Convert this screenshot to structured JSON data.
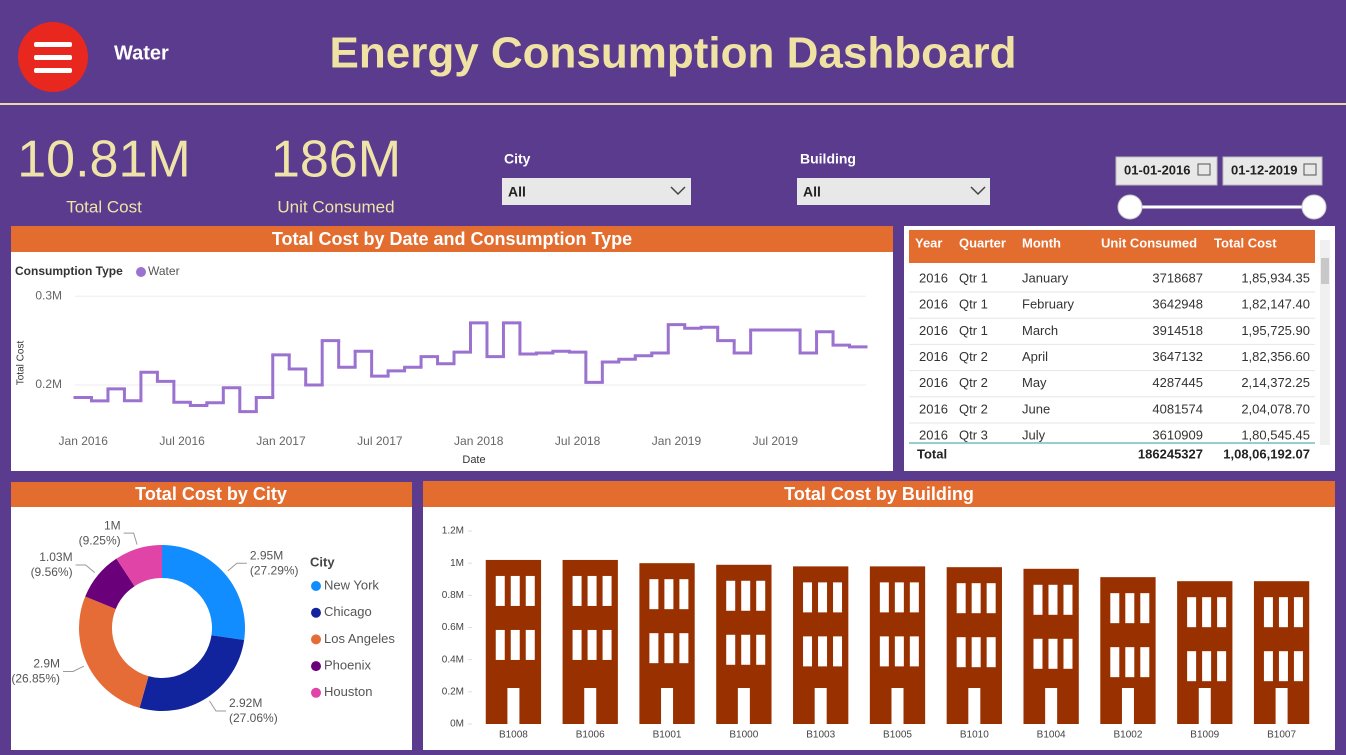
{
  "header": {
    "menu_label": "Water",
    "title": "Energy Consumption Dashboard"
  },
  "kpis": [
    {
      "value": "10.81M",
      "label": "Total Cost"
    },
    {
      "value": "186M",
      "label": "Unit Consumed"
    }
  ],
  "filters": [
    {
      "label": "City",
      "value": "All"
    },
    {
      "label": "Building",
      "value": "All"
    }
  ],
  "date_range": [
    "01-01-2016",
    "01-12-2019"
  ],
  "chart_data": [
    {
      "type": "line",
      "title": "Total Cost by Date and Consumption Type",
      "legend_title": "Consumption Type",
      "x_label": "Date",
      "y_label": "Total Cost",
      "step": true,
      "grid": true,
      "x": [
        "2016-01",
        "2016-02",
        "2016-03",
        "2016-04",
        "2016-05",
        "2016-06",
        "2016-07",
        "2016-08",
        "2016-09",
        "2016-10",
        "2016-11",
        "2016-12",
        "2017-01",
        "2017-02",
        "2017-03",
        "2017-04",
        "2017-05",
        "2017-06",
        "2017-07",
        "2017-08",
        "2017-09",
        "2017-10",
        "2017-11",
        "2017-12",
        "2018-01",
        "2018-02",
        "2018-03",
        "2018-04",
        "2018-05",
        "2018-06",
        "2018-07",
        "2018-08",
        "2018-09",
        "2018-10",
        "2018-11",
        "2018-12",
        "2019-01",
        "2019-02",
        "2019-03",
        "2019-04",
        "2019-05",
        "2019-06",
        "2019-07",
        "2019-08",
        "2019-09",
        "2019-10",
        "2019-11",
        "2019-12"
      ],
      "xticks": [
        {
          "value": "2016-01",
          "label": "Jan 2016"
        },
        {
          "value": "2016-07",
          "label": "Jul 2016"
        },
        {
          "value": "2017-01",
          "label": "Jan 2017"
        },
        {
          "value": "2017-07",
          "label": "Jul 2017"
        },
        {
          "value": "2018-01",
          "label": "Jan 2018"
        },
        {
          "value": "2018-07",
          "label": "Jul 2018"
        },
        {
          "value": "2019-01",
          "label": "Jan 2019"
        },
        {
          "value": "2019-07",
          "label": "Jul 2019"
        }
      ],
      "ylim": [
        155000,
        307000
      ],
      "yticks": [
        {
          "value": 200000,
          "label": "0.2M"
        },
        {
          "value": 300000,
          "label": "0.3M"
        }
      ],
      "series": [
        {
          "name": "Water",
          "color": "#9b72cf",
          "values": [
            185934,
            182147,
            195726,
            182357,
            214372,
            204079,
            180545,
            177000,
            180000,
            197000,
            170000,
            186000,
            234000,
            218000,
            200000,
            250000,
            220000,
            238000,
            210000,
            216000,
            220000,
            232000,
            224000,
            237000,
            270000,
            232000,
            270000,
            235000,
            236000,
            238000,
            237000,
            203000,
            226000,
            229000,
            233000,
            236000,
            268000,
            264000,
            265000,
            250000,
            236000,
            262000,
            262000,
            262000,
            236000,
            260000,
            245000,
            243000
          ]
        }
      ]
    },
    {
      "type": "pie",
      "title": "Total Cost by City",
      "legend_title": "City",
      "categories": [
        "New York",
        "Chicago",
        "Los Angeles",
        "Phoenix",
        "Houston"
      ],
      "values": [
        2950000,
        2920000,
        2900000,
        1030000,
        1000000
      ],
      "value_labels": [
        "2.95M",
        "2.92M",
        "2.9M",
        "1.03M",
        "1M"
      ],
      "percents": [
        27.29,
        27.06,
        26.85,
        9.56,
        9.25
      ],
      "percent_labels": [
        "(27.29%)",
        "(27.06%)",
        "(26.85%)",
        "(9.56%)",
        "(9.25%)"
      ],
      "colors": [
        "#118dff",
        "#12239e",
        "#e66c37",
        "#6b007b",
        "#e044a7"
      ]
    },
    {
      "type": "bar",
      "title": "Total Cost by Building",
      "categories": [
        "B1008",
        "B1006",
        "B1001",
        "B1000",
        "B1003",
        "B1005",
        "B1010",
        "B1004",
        "B1002",
        "B1009",
        "B1007"
      ],
      "values": [
        1020000,
        1020000,
        1000000,
        990000,
        980000,
        980000,
        975000,
        965000,
        913000,
        888000,
        888000
      ],
      "color": "#993000",
      "ylim": [
        0,
        1200000
      ],
      "yticks": [
        {
          "value": 0,
          "label": "0M"
        },
        {
          "value": 200000,
          "label": "0.2M"
        },
        {
          "value": 400000,
          "label": "0.4M"
        },
        {
          "value": 600000,
          "label": "0.6M"
        },
        {
          "value": 800000,
          "label": "0.8M"
        },
        {
          "value": 1000000,
          "label": "1M"
        },
        {
          "value": 1200000,
          "label": "1.2M"
        }
      ]
    }
  ],
  "table": {
    "columns": [
      "Year",
      "Quarter",
      "Month",
      "Unit Consumed",
      "Total Cost"
    ],
    "rows": [
      [
        "2016",
        "Qtr 1",
        "January",
        "3718687",
        "1,85,934.35"
      ],
      [
        "2016",
        "Qtr 1",
        "February",
        "3642948",
        "1,82,147.40"
      ],
      [
        "2016",
        "Qtr 1",
        "March",
        "3914518",
        "1,95,725.90"
      ],
      [
        "2016",
        "Qtr 2",
        "April",
        "3647132",
        "1,82,356.60"
      ],
      [
        "2016",
        "Qtr 2",
        "May",
        "4287445",
        "2,14,372.25"
      ],
      [
        "2016",
        "Qtr 2",
        "June",
        "4081574",
        "2,04,078.70"
      ],
      [
        "2016",
        "Qtr 3",
        "July",
        "3610909",
        "1,80,545.45"
      ]
    ],
    "total": {
      "label": "Total",
      "unit_consumed": "186245327",
      "total_cost": "1,08,06,192.07"
    }
  }
}
